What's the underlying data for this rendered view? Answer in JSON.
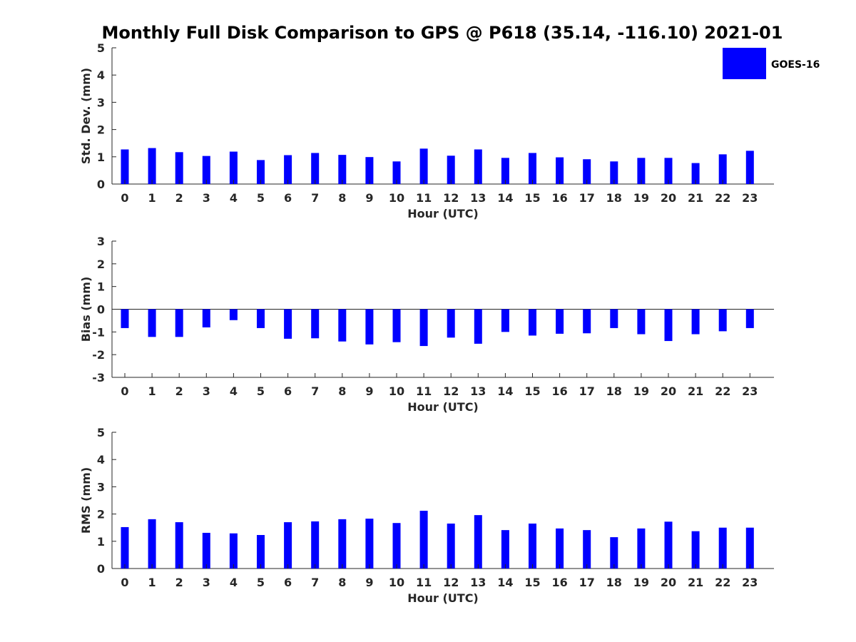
{
  "title": "Monthly Full Disk Comparison to GPS @ P618 (35.14, -116.10) 2021-01",
  "legend": {
    "label": "GOES-16",
    "color": "#0000ff",
    "position": "top-right"
  },
  "chart_data": [
    {
      "type": "bar",
      "ylabel": "Std. Dev. (mm)",
      "xlabel": "Hour (UTC)",
      "ylim": [
        0,
        5
      ],
      "yticks": [
        "0",
        "1",
        "2",
        "3",
        "4",
        "5"
      ],
      "categories": [
        "0",
        "1",
        "2",
        "3",
        "4",
        "5",
        "6",
        "7",
        "8",
        "9",
        "10",
        "11",
        "12",
        "13",
        "14",
        "15",
        "16",
        "17",
        "18",
        "19",
        "20",
        "21",
        "22",
        "23"
      ],
      "series": [
        {
          "name": "GOES-16",
          "values": [
            1.27,
            1.32,
            1.17,
            1.03,
            1.19,
            0.88,
            1.06,
            1.14,
            1.07,
            0.99,
            0.83,
            1.3,
            1.04,
            1.27,
            0.96,
            1.14,
            0.98,
            0.91,
            0.83,
            0.96,
            0.96,
            0.77,
            1.09,
            1.22
          ]
        }
      ],
      "grid": false
    },
    {
      "type": "bar",
      "ylabel": "Bias (mm)",
      "xlabel": "Hour (UTC)",
      "ylim": [
        -3,
        3
      ],
      "yticks": [
        "-3",
        "-2",
        "-1",
        "0",
        "1",
        "2",
        "3"
      ],
      "categories": [
        "0",
        "1",
        "2",
        "3",
        "4",
        "5",
        "6",
        "7",
        "8",
        "9",
        "10",
        "11",
        "12",
        "13",
        "14",
        "15",
        "16",
        "17",
        "18",
        "19",
        "20",
        "21",
        "22",
        "23"
      ],
      "series": [
        {
          "name": "GOES-16",
          "values": [
            -0.83,
            -1.22,
            -1.22,
            -0.8,
            -0.48,
            -0.83,
            -1.3,
            -1.28,
            -1.42,
            -1.55,
            -1.45,
            -1.62,
            -1.25,
            -1.52,
            -1.0,
            -1.16,
            -1.08,
            -1.06,
            -0.83,
            -1.1,
            -1.4,
            -1.1,
            -0.97,
            -0.83
          ]
        }
      ],
      "grid": false
    },
    {
      "type": "bar",
      "ylabel": "RMS (mm)",
      "xlabel": "Hour (UTC)",
      "ylim": [
        0,
        5
      ],
      "yticks": [
        "0",
        "1",
        "2",
        "3",
        "4",
        "5"
      ],
      "categories": [
        "0",
        "1",
        "2",
        "3",
        "4",
        "5",
        "6",
        "7",
        "8",
        "9",
        "10",
        "11",
        "12",
        "13",
        "14",
        "15",
        "16",
        "17",
        "18",
        "19",
        "20",
        "21",
        "22",
        "23"
      ],
      "series": [
        {
          "name": "GOES-16",
          "values": [
            1.52,
            1.81,
            1.7,
            1.31,
            1.29,
            1.23,
            1.7,
            1.73,
            1.81,
            1.83,
            1.67,
            2.12,
            1.65,
            1.96,
            1.41,
            1.65,
            1.47,
            1.41,
            1.15,
            1.47,
            1.72,
            1.37,
            1.5,
            1.5
          ]
        }
      ],
      "grid": false
    }
  ]
}
